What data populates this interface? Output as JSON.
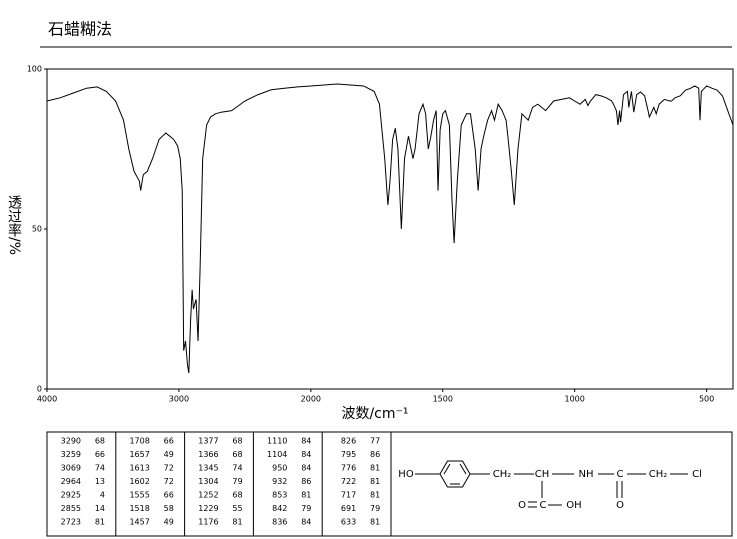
{
  "chart_data": {
    "type": "line",
    "title": "石蜡糊法",
    "xlabel": "波数/cm⁻¹",
    "ylabel": "透过率/%",
    "xlim": [
      4000,
      400
    ],
    "x_scale_break": 2000,
    "xticks": [
      4000,
      3000,
      2000,
      1500,
      1000,
      500
    ],
    "ylim": [
      0,
      100
    ],
    "yticks": [
      0,
      50,
      100
    ],
    "color": "#000000",
    "x": [
      4000,
      3900,
      3800,
      3700,
      3620,
      3550,
      3480,
      3420,
      3380,
      3340,
      3300,
      3290,
      3270,
      3240,
      3200,
      3150,
      3100,
      3069,
      3040,
      3010,
      2990,
      2975,
      2964,
      2950,
      2935,
      2925,
      2912,
      2900,
      2890,
      2870,
      2855,
      2840,
      2820,
      2790,
      2760,
      2723,
      2680,
      2600,
      2500,
      2400,
      2300,
      2200,
      2100,
      2000,
      1900,
      1850,
      1800,
      1760,
      1740,
      1720,
      1708,
      1700,
      1690,
      1680,
      1670,
      1657,
      1645,
      1630,
      1613,
      1605,
      1590,
      1575,
      1565,
      1555,
      1545,
      1535,
      1525,
      1518,
      1510,
      1500,
      1490,
      1475,
      1465,
      1457,
      1445,
      1430,
      1410,
      1395,
      1377,
      1366,
      1355,
      1345,
      1330,
      1315,
      1304,
      1290,
      1275,
      1260,
      1252,
      1240,
      1229,
      1215,
      1200,
      1176,
      1160,
      1140,
      1110,
      1100,
      1080,
      1050,
      1020,
      1000,
      980,
      960,
      950,
      940,
      920,
      900,
      880,
      860,
      853,
      842,
      836,
      830,
      826,
      815,
      800,
      795,
      785,
      776,
      765,
      750,
      735,
      722,
      717,
      700,
      691,
      680,
      660,
      640,
      633,
      620,
      600,
      580,
      560,
      545,
      530,
      525,
      520,
      500,
      480,
      460,
      440,
      420,
      400
    ],
    "values": [
      90,
      91,
      92.5,
      94,
      94.4,
      93,
      90,
      84,
      75,
      68,
      65,
      62,
      67,
      68,
      72,
      78,
      80,
      79,
      78,
      76,
      72,
      62,
      12,
      15,
      7.5,
      5,
      21,
      31,
      25,
      28,
      15,
      37,
      72,
      82.5,
      85,
      86,
      86.5,
      87,
      90,
      92,
      93.5,
      94,
      94.4,
      94.7,
      95.3,
      95,
      94.7,
      93,
      89,
      72,
      57.5,
      65,
      78,
      81.5,
      75,
      50,
      72,
      79,
      72,
      75,
      86,
      89,
      86,
      75,
      79,
      84,
      87,
      62,
      81,
      86,
      87,
      82.5,
      59,
      45.6,
      65,
      82.5,
      86,
      86,
      75,
      62,
      75,
      79,
      84,
      87,
      84,
      89,
      87,
      84,
      78,
      68,
      57.5,
      75,
      86,
      84,
      88,
      89,
      87,
      88,
      90,
      90.5,
      91,
      90,
      89,
      90.5,
      88.6,
      90,
      92,
      91.6,
      91,
      90,
      89,
      87,
      82.5,
      87,
      83.4,
      92,
      93,
      88,
      93,
      86.5,
      92,
      92.8,
      91.6,
      87,
      85,
      88,
      86,
      89,
      90.5,
      90,
      90,
      91,
      91.6,
      93.4,
      94,
      94.7,
      94,
      84,
      93,
      94.7,
      94,
      93.4,
      91.6,
      87,
      82.5
    ]
  },
  "peak_table": [
    [
      3290,
      68
    ],
    [
      3259,
      66
    ],
    [
      3069,
      74
    ],
    [
      2964,
      13
    ],
    [
      2925,
      4
    ],
    [
      2855,
      14
    ],
    [
      2723,
      81
    ],
    [
      1708,
      66
    ],
    [
      1657,
      49
    ],
    [
      1613,
      72
    ],
    [
      1602,
      72
    ],
    [
      1555,
      66
    ],
    [
      1518,
      58
    ],
    [
      1457,
      49
    ],
    [
      1377,
      68
    ],
    [
      1366,
      68
    ],
    [
      1345,
      74
    ],
    [
      1304,
      79
    ],
    [
      1252,
      68
    ],
    [
      1229,
      55
    ],
    [
      1176,
      81
    ],
    [
      1110,
      84
    ],
    [
      1104,
      84
    ],
    [
      950,
      84
    ],
    [
      932,
      86
    ],
    [
      853,
      81
    ],
    [
      842,
      79
    ],
    [
      836,
      84
    ],
    [
      826,
      77
    ],
    [
      795,
      86
    ],
    [
      776,
      81
    ],
    [
      722,
      81
    ],
    [
      717,
      81
    ],
    [
      691,
      79
    ],
    [
      633,
      81
    ]
  ],
  "structure": {
    "labels": [
      "HO",
      "CH₂",
      "CH",
      "NH",
      "C",
      "CH₂",
      "Cl",
      "O",
      "C",
      "OH",
      "O"
    ]
  }
}
